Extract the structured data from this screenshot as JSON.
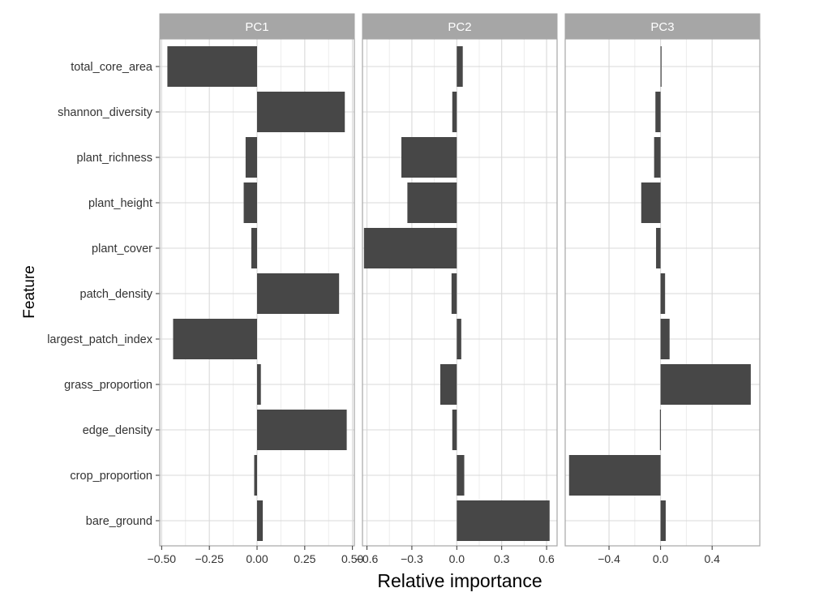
{
  "chart_data": {
    "type": "bar",
    "orientation": "horizontal",
    "xlabel": "Relative importance",
    "ylabel": "Feature",
    "grid": true,
    "legend": "none",
    "colors": {
      "bar": "#474747",
      "strip": "#a6a6a6",
      "panel_border": "#a6a6a6",
      "grid_major": "#d9d9d9",
      "grid_minor": "#ececec"
    },
    "categories": [
      "total_core_area",
      "shannon_diversity",
      "plant_richness",
      "plant_height",
      "plant_cover",
      "patch_density",
      "largest_patch_index",
      "grass_proportion",
      "edge_density",
      "crop_proportion",
      "bare_ground"
    ],
    "panels": [
      {
        "name": "PC1",
        "xlim": [
          -0.51,
          0.51
        ],
        "ticks": [
          -0.5,
          -0.25,
          0,
          0.25,
          0.5
        ],
        "tick_labels": [
          "−0.50",
          "−0.25",
          "0.00",
          "0.25",
          "0.50"
        ],
        "values": [
          -0.47,
          0.46,
          -0.06,
          -0.07,
          -0.03,
          0.43,
          -0.44,
          0.02,
          0.47,
          -0.015,
          0.03
        ]
      },
      {
        "name": "PC2",
        "xlim": [
          -0.63,
          0.67
        ],
        "ticks": [
          -0.6,
          -0.3,
          0,
          0.3,
          0.6
        ],
        "tick_labels": [
          "−0.6",
          "−0.3",
          "0.0",
          "0.3",
          "0.6"
        ],
        "values": [
          0.04,
          -0.03,
          -0.37,
          -0.33,
          -0.62,
          -0.035,
          0.03,
          -0.11,
          -0.03,
          0.05,
          0.62
        ]
      },
      {
        "name": "PC3",
        "xlim": [
          -0.74,
          0.77
        ],
        "ticks": [
          -0.4,
          0,
          0.4
        ],
        "tick_labels": [
          "−0.4",
          "0.0",
          "0.4"
        ],
        "values": [
          0.005,
          -0.04,
          -0.05,
          -0.15,
          -0.035,
          0.035,
          0.07,
          0.7,
          -0.005,
          -0.71,
          0.04
        ]
      }
    ]
  }
}
